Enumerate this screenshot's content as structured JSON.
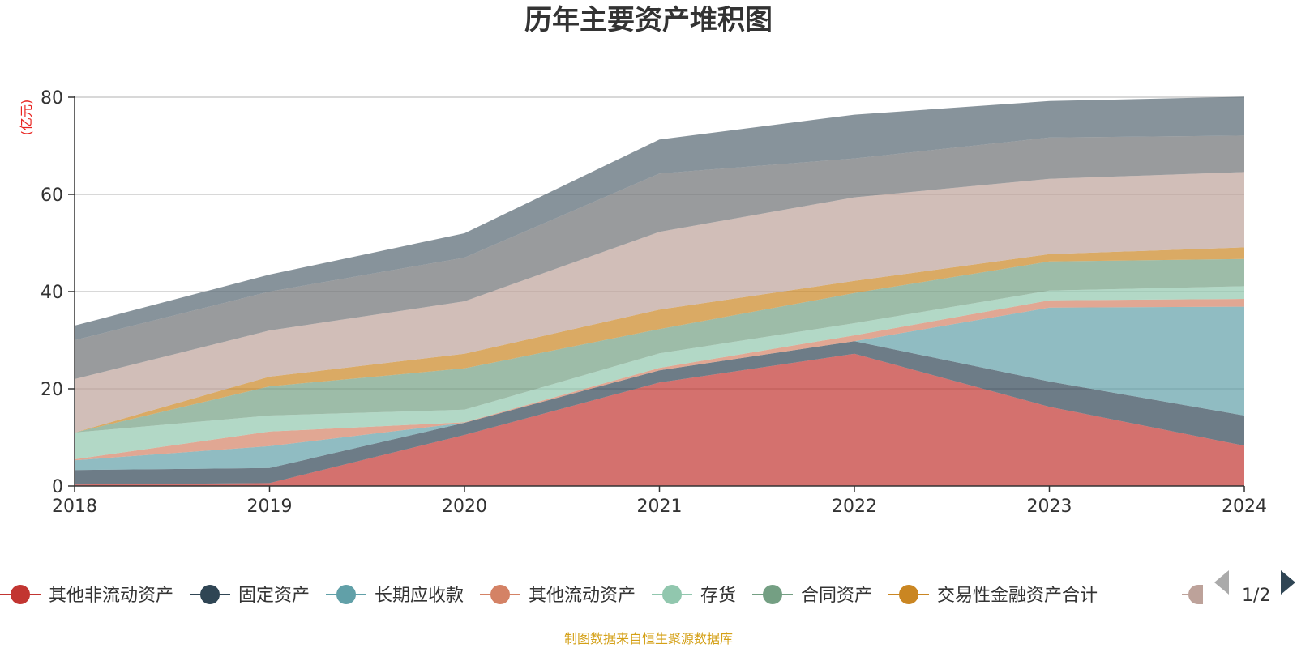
{
  "chart_data": {
    "type": "area",
    "stacked": true,
    "title": "历年主要资产堆积图",
    "unit_label": "(亿元)",
    "x": [
      "2018",
      "2019",
      "2020",
      "2021",
      "2022",
      "2023",
      "2024"
    ],
    "ylim": [
      0,
      80
    ],
    "yticks": [
      0,
      20,
      40,
      60,
      80
    ],
    "series": [
      {
        "name": "其他非流动资产",
        "color": "#c23531",
        "values": [
          0.3,
          0.6,
          10.5,
          21.3,
          27.2,
          16.3,
          8.3
        ]
      },
      {
        "name": "固定资产",
        "color": "#2f4554",
        "values": [
          3.0,
          3.1,
          2.5,
          2.5,
          2.6,
          5.2,
          6.2
        ]
      },
      {
        "name": "长期应收款",
        "color": "#61a0a8",
        "values": [
          2.0,
          4.5,
          0.0,
          0.0,
          0.0,
          15.2,
          22.4
        ]
      },
      {
        "name": "其他流动资产",
        "color": "#d48265",
        "values": [
          0.2,
          3.0,
          0.1,
          0.5,
          1.2,
          1.5,
          1.6
        ]
      },
      {
        "name": "存货",
        "color": "#91c7ae",
        "values": [
          5.5,
          3.3,
          2.6,
          3.0,
          2.5,
          2.0,
          2.6
        ]
      },
      {
        "name": "合同资产",
        "color": "#749f83",
        "values": [
          0.0,
          6.0,
          8.5,
          5.0,
          6.2,
          6.0,
          5.6
        ]
      },
      {
        "name": "交易性金融资产合计",
        "color": "#ca8622",
        "values": [
          0.0,
          2.0,
          3.0,
          4.0,
          2.5,
          1.5,
          2.4
        ]
      },
      {
        "name": "",
        "color": "#bda29a",
        "values": [
          11.0,
          9.5,
          10.8,
          16.0,
          17.2,
          15.5,
          15.5
        ]
      },
      {
        "name": "",
        "color": "#6e7074",
        "values": [
          8.0,
          8.0,
          9.0,
          12.0,
          8.0,
          8.5,
          7.5
        ]
      },
      {
        "name": "",
        "color": "#546570",
        "values": [
          3.0,
          3.5,
          5.0,
          7.0,
          9.0,
          7.5,
          8.0
        ]
      }
    ],
    "legend": {
      "position": "bottom",
      "page": "1/2",
      "visible_items": [
        "其他非流动资产",
        "固定资产",
        "长期应收款",
        "其他流动资产",
        "存货",
        "合同资产",
        "交易性金融资产合计"
      ]
    },
    "grid": true
  },
  "source_note": "制图数据来自恒生聚源数据库"
}
